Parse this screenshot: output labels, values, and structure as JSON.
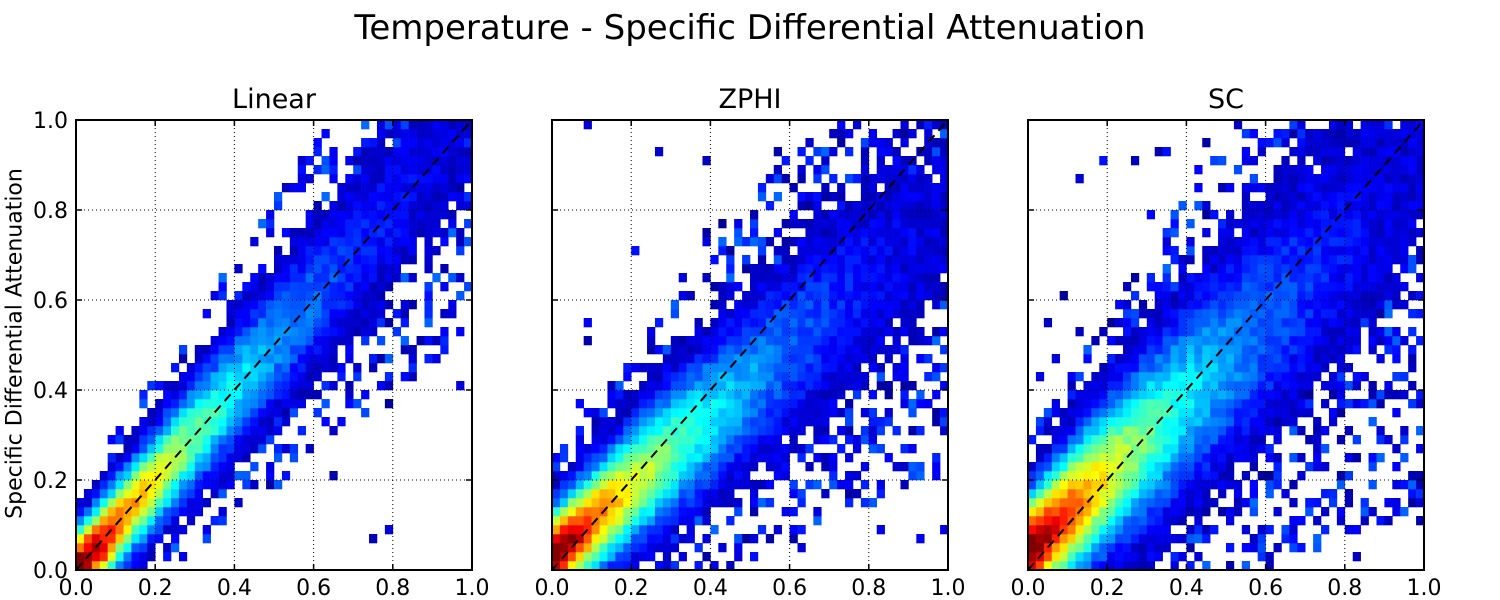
{
  "figure": {
    "title": "Temperature - Specific Differential Attenuation",
    "ylabel": "Specific Differential Attenuation"
  },
  "chart_data": [
    {
      "type": "heatmap",
      "title": "Linear",
      "xlim": [
        0,
        1
      ],
      "ylim": [
        0,
        1
      ],
      "xticks": [
        "0.0",
        "0.2",
        "0.4",
        "0.6",
        "0.8",
        "1.0"
      ],
      "yticks": [
        "0.0",
        "0.2",
        "0.4",
        "0.6",
        "0.8",
        "1.0"
      ],
      "grid": true,
      "reference_line": "y = x (dashed)",
      "colormap": "jet",
      "bins": 50,
      "distribution": {
        "slope": 1.0,
        "offset": 0.0,
        "spread": 0.1,
        "outlier_density": 0.05,
        "peak_at": [
          0.05,
          0.05
        ]
      }
    },
    {
      "type": "heatmap",
      "title": "ZPHI",
      "xlim": [
        0,
        1
      ],
      "ylim": [
        0,
        1
      ],
      "xticks": [
        "0.0",
        "0.2",
        "0.4",
        "0.6",
        "0.8",
        "1.0"
      ],
      "yticks": [],
      "grid": true,
      "reference_line": "y = x (dashed)",
      "colormap": "jet",
      "bins": 50,
      "distribution": {
        "slope": 0.78,
        "offset": 0.03,
        "spread": 0.13,
        "outlier_density": 0.12,
        "peak_at": [
          0.05,
          0.07
        ]
      }
    },
    {
      "type": "heatmap",
      "title": "SC",
      "xlim": [
        0,
        1
      ],
      "ylim": [
        0,
        1
      ],
      "xticks": [
        "0.0",
        "0.2",
        "0.4",
        "0.6",
        "0.8",
        "1.0"
      ],
      "yticks": [],
      "grid": true,
      "reference_line": "y = x (dashed)",
      "colormap": "jet",
      "bins": 50,
      "distribution": {
        "slope": 0.85,
        "offset": 0.04,
        "spread": 0.17,
        "outlier_density": 0.2,
        "peak_at": [
          0.05,
          0.08
        ]
      }
    }
  ]
}
